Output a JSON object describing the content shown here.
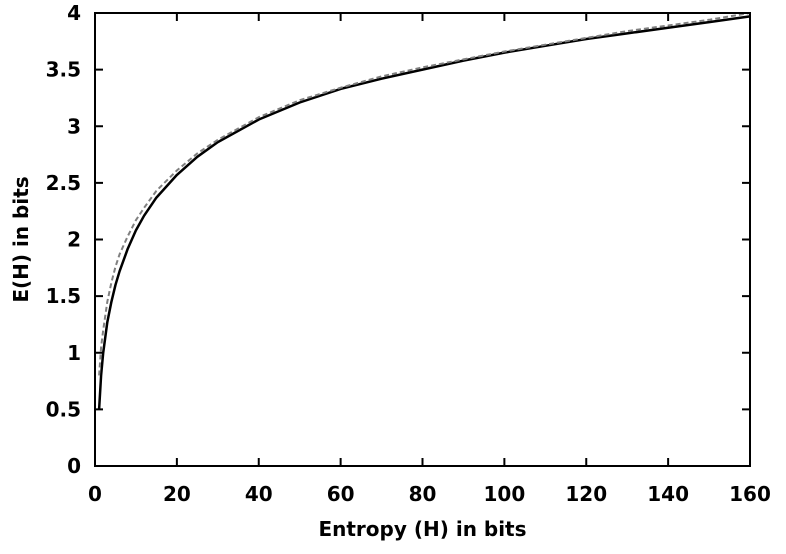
{
  "chart_data": {
    "type": "line",
    "title": "",
    "xlabel": "Entropy (H) in bits",
    "ylabel": "E(H) in bits",
    "xlim": [
      0,
      160
    ],
    "ylim": [
      0,
      4
    ],
    "x_ticks": [
      0,
      20,
      40,
      60,
      80,
      100,
      120,
      140,
      160
    ],
    "x_tick_labels": [
      "0",
      "20",
      "40",
      "60",
      "80",
      "100",
      "120",
      "140",
      "160"
    ],
    "y_ticks": [
      0,
      0.5,
      1,
      1.5,
      2,
      2.5,
      3,
      3.5,
      4
    ],
    "y_tick_labels": [
      "0",
      "0.5",
      "1",
      "1.5",
      "2",
      "2.5",
      "3",
      "3.5",
      "4"
    ],
    "grid": false,
    "legend": "none",
    "series": [
      {
        "style": "solid",
        "color": "#000000",
        "x": [
          1,
          1.5,
          2,
          3,
          4,
          5,
          6,
          8,
          10,
          12,
          15,
          20,
          25,
          30,
          40,
          50,
          60,
          70,
          80,
          90,
          100,
          110,
          120,
          130,
          140,
          150,
          160
        ],
        "y": [
          0.5,
          0.8,
          1.0,
          1.27,
          1.45,
          1.6,
          1.72,
          1.92,
          2.08,
          2.21,
          2.37,
          2.57,
          2.73,
          2.86,
          3.06,
          3.21,
          3.33,
          3.42,
          3.5,
          3.58,
          3.65,
          3.71,
          3.77,
          3.82,
          3.87,
          3.92,
          3.97
        ]
      },
      {
        "style": "dashed",
        "color": "#808080",
        "x": [
          1,
          1.5,
          2,
          3,
          4,
          5,
          6,
          8,
          10,
          12,
          15,
          20,
          25,
          30,
          40,
          50,
          60,
          70,
          80,
          90,
          100,
          110,
          120,
          130,
          140,
          150,
          160
        ],
        "y": [
          0.8,
          1.05,
          1.2,
          1.45,
          1.62,
          1.76,
          1.87,
          2.03,
          2.17,
          2.28,
          2.43,
          2.61,
          2.76,
          2.88,
          3.08,
          3.23,
          3.34,
          3.44,
          3.52,
          3.59,
          3.66,
          3.72,
          3.78,
          3.84,
          3.89,
          3.94,
          4.0
        ]
      }
    ]
  }
}
